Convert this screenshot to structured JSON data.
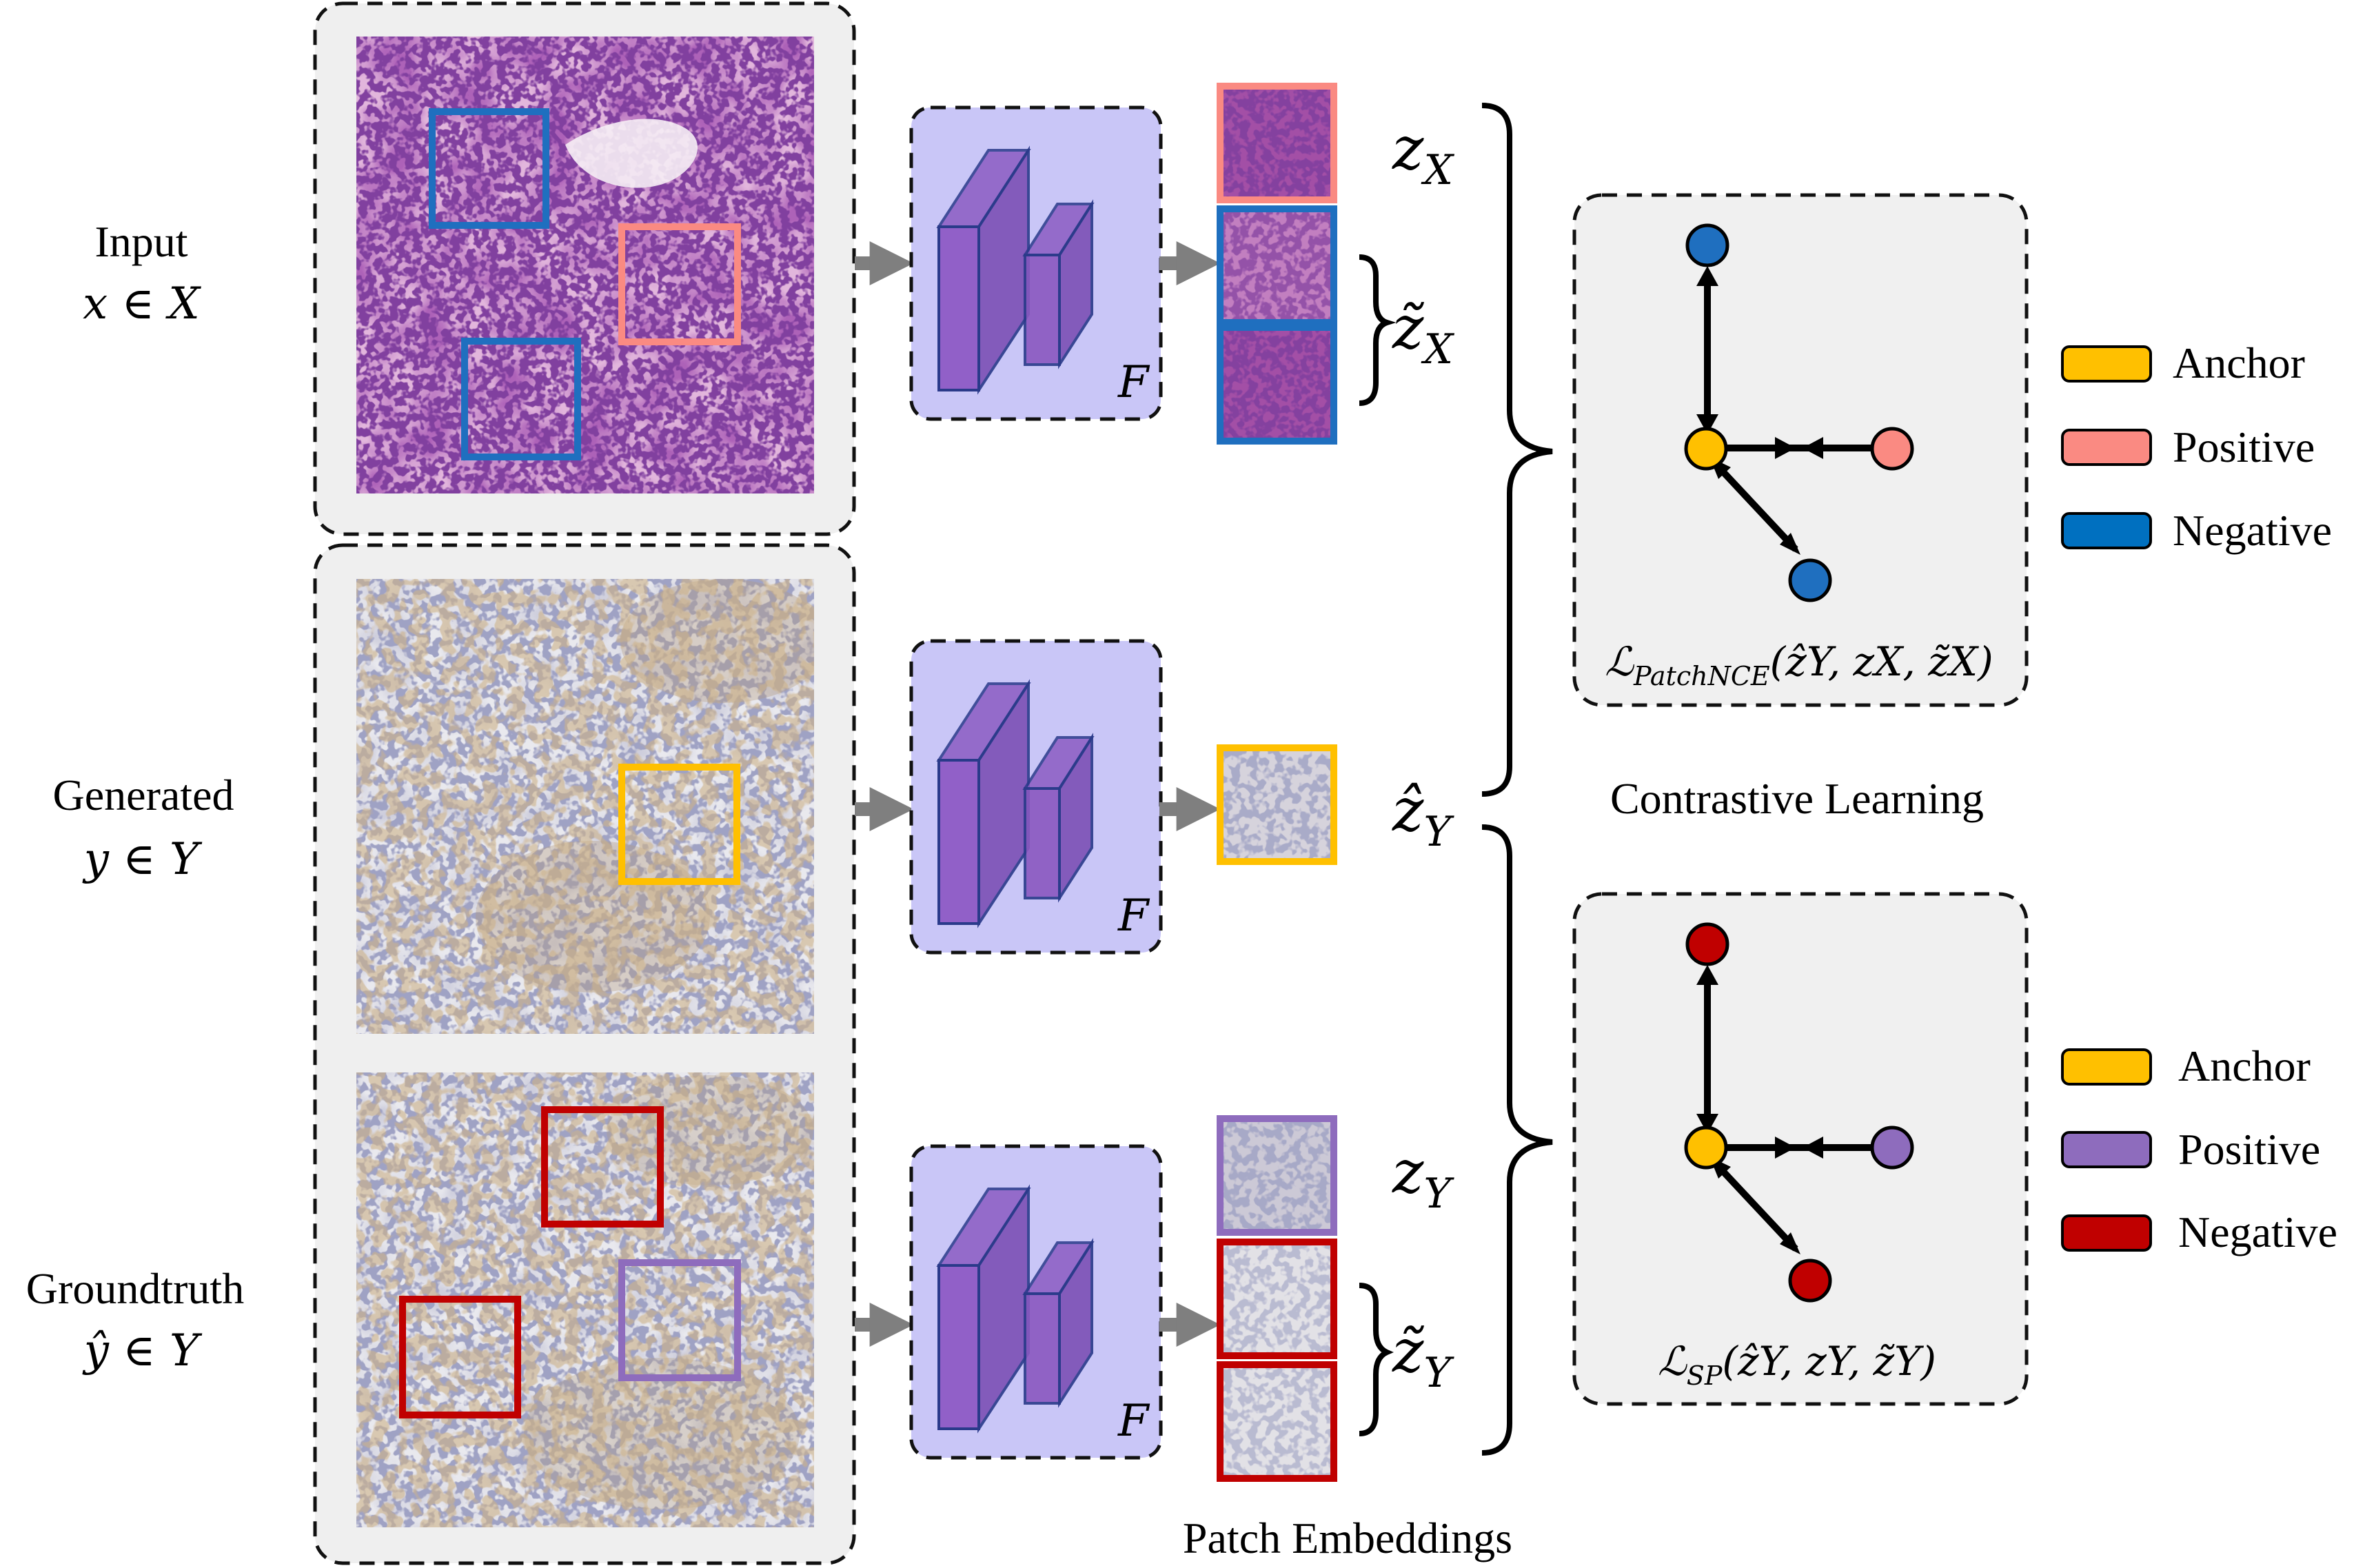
{
  "rows": {
    "input": {
      "title": "Input",
      "set": "x ∈ X"
    },
    "generated": {
      "title": "Generated",
      "set": "y ∈ Y"
    },
    "groundtruth": {
      "title": "Groundtruth",
      "set": "ŷ ∈ Y"
    }
  },
  "encoder_label": "F",
  "embeddings": {
    "zx": "z",
    "zx_sub": "X",
    "zx_tilde": "z̃",
    "zx_tilde_sub": "X",
    "zy_hat": "ẑ",
    "zy_hat_sub": "Y",
    "zy": "z",
    "zy_sub": "Y",
    "zy_tilde": "z̃",
    "zy_tilde_sub": "Y",
    "caption": "Patch Embeddings"
  },
  "contrastive_caption": "Contrastive Learning",
  "loss_patchnce": {
    "symbol": "ℒ",
    "sub": "PatchNCE",
    "args": "(ẑ",
    "args_full": "(ẑY, zX, z̃X)"
  },
  "loss_sp": {
    "symbol": "ℒ",
    "sub": "SP",
    "args_full": "(ẑY, zY, z̃Y)"
  },
  "legend_top": [
    {
      "label": "Anchor",
      "color": "#ffc000"
    },
    {
      "label": "Positive",
      "color": "#fa8a82"
    },
    {
      "label": "Negative",
      "color": "#0070c0"
    }
  ],
  "legend_bottom": [
    {
      "label": "Anchor",
      "color": "#ffc000"
    },
    {
      "label": "Positive",
      "color": "#8e6cbd"
    },
    {
      "label": "Negative",
      "color": "#c00000"
    }
  ],
  "colors": {
    "anchor": "#ffc000",
    "positive_top": "#fa8a82",
    "negative_top": "#1f6fbf",
    "positive_bottom": "#8e6cbd",
    "negative_bottom": "#c00000",
    "encoder_bg": "#c9c6f7",
    "cube_face": "#8b5cc3",
    "panel_bg": "#f0f0f0"
  }
}
